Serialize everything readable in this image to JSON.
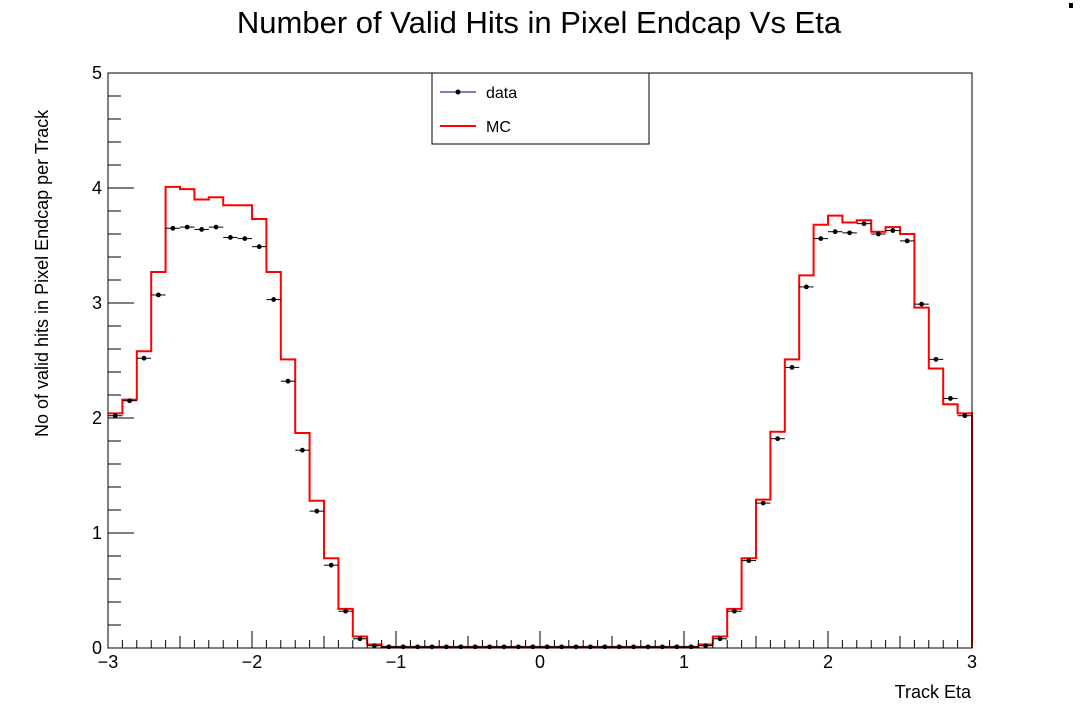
{
  "chart_data": {
    "type": "line",
    "title": "Number of Valid Hits in Pixel Endcap Vs Eta",
    "xlabel": "Track Eta",
    "ylabel": "No of valid hits in Pixel Endcap per Track",
    "xlim": [
      -3,
      3
    ],
    "ylim": [
      0,
      5
    ],
    "x_ticks": [
      "−3",
      "−2",
      "−1",
      "0",
      "1",
      "2",
      "3"
    ],
    "y_ticks": [
      "0",
      "1",
      "2",
      "3",
      "4",
      "5"
    ],
    "grid": false,
    "legend_position": "top-center",
    "bin_edges": [
      -3.0,
      -2.9,
      -2.8,
      -2.7,
      -2.6,
      -2.5,
      -2.4,
      -2.3,
      -2.2,
      -2.1,
      -2.0,
      -1.9,
      -1.8,
      -1.7,
      -1.6,
      -1.5,
      -1.4,
      -1.3,
      -1.2,
      -1.1,
      -1.0,
      -0.9,
      -0.8,
      -0.7,
      -0.6,
      -0.5,
      -0.4,
      -0.3,
      -0.2,
      -0.1,
      0.0,
      0.1,
      0.2,
      0.3,
      0.4,
      0.5,
      0.6,
      0.7,
      0.8,
      0.9,
      1.0,
      1.1,
      1.2,
      1.3,
      1.4,
      1.5,
      1.6,
      1.7,
      1.8,
      1.9,
      2.0,
      2.1,
      2.2,
      2.3,
      2.4,
      2.5,
      2.6,
      2.7,
      2.8,
      2.9,
      3.0
    ],
    "series": [
      {
        "name": "data",
        "style": "markers",
        "color": "#000000",
        "values": [
          2.02,
          2.15,
          2.52,
          3.07,
          3.65,
          3.66,
          3.64,
          3.66,
          3.57,
          3.56,
          3.49,
          3.03,
          2.32,
          1.72,
          1.19,
          0.72,
          0.32,
          0.08,
          0.02,
          0.01,
          0.01,
          0.01,
          0.01,
          0.01,
          0.01,
          0.01,
          0.01,
          0.01,
          0.01,
          0.01,
          0.01,
          0.01,
          0.01,
          0.01,
          0.01,
          0.01,
          0.01,
          0.01,
          0.01,
          0.01,
          0.01,
          0.02,
          0.08,
          0.32,
          0.76,
          1.26,
          1.82,
          2.44,
          3.14,
          3.56,
          3.62,
          3.61,
          3.69,
          3.6,
          3.63,
          3.54,
          2.99,
          2.51,
          2.17,
          2.02
        ]
      },
      {
        "name": "MC",
        "style": "step",
        "color": "#ff0000",
        "values": [
          2.04,
          2.16,
          2.58,
          3.27,
          4.01,
          3.99,
          3.9,
          3.92,
          3.85,
          3.85,
          3.73,
          3.27,
          2.51,
          1.87,
          1.28,
          0.78,
          0.34,
          0.1,
          0.03,
          0.01,
          0.01,
          0.01,
          0.01,
          0.01,
          0.01,
          0.01,
          0.01,
          0.01,
          0.01,
          0.01,
          0.01,
          0.01,
          0.01,
          0.01,
          0.01,
          0.01,
          0.01,
          0.01,
          0.01,
          0.01,
          0.01,
          0.03,
          0.1,
          0.34,
          0.78,
          1.29,
          1.88,
          2.51,
          3.24,
          3.68,
          3.76,
          3.7,
          3.72,
          3.62,
          3.66,
          3.6,
          2.96,
          2.43,
          2.12,
          2.04
        ]
      }
    ]
  }
}
